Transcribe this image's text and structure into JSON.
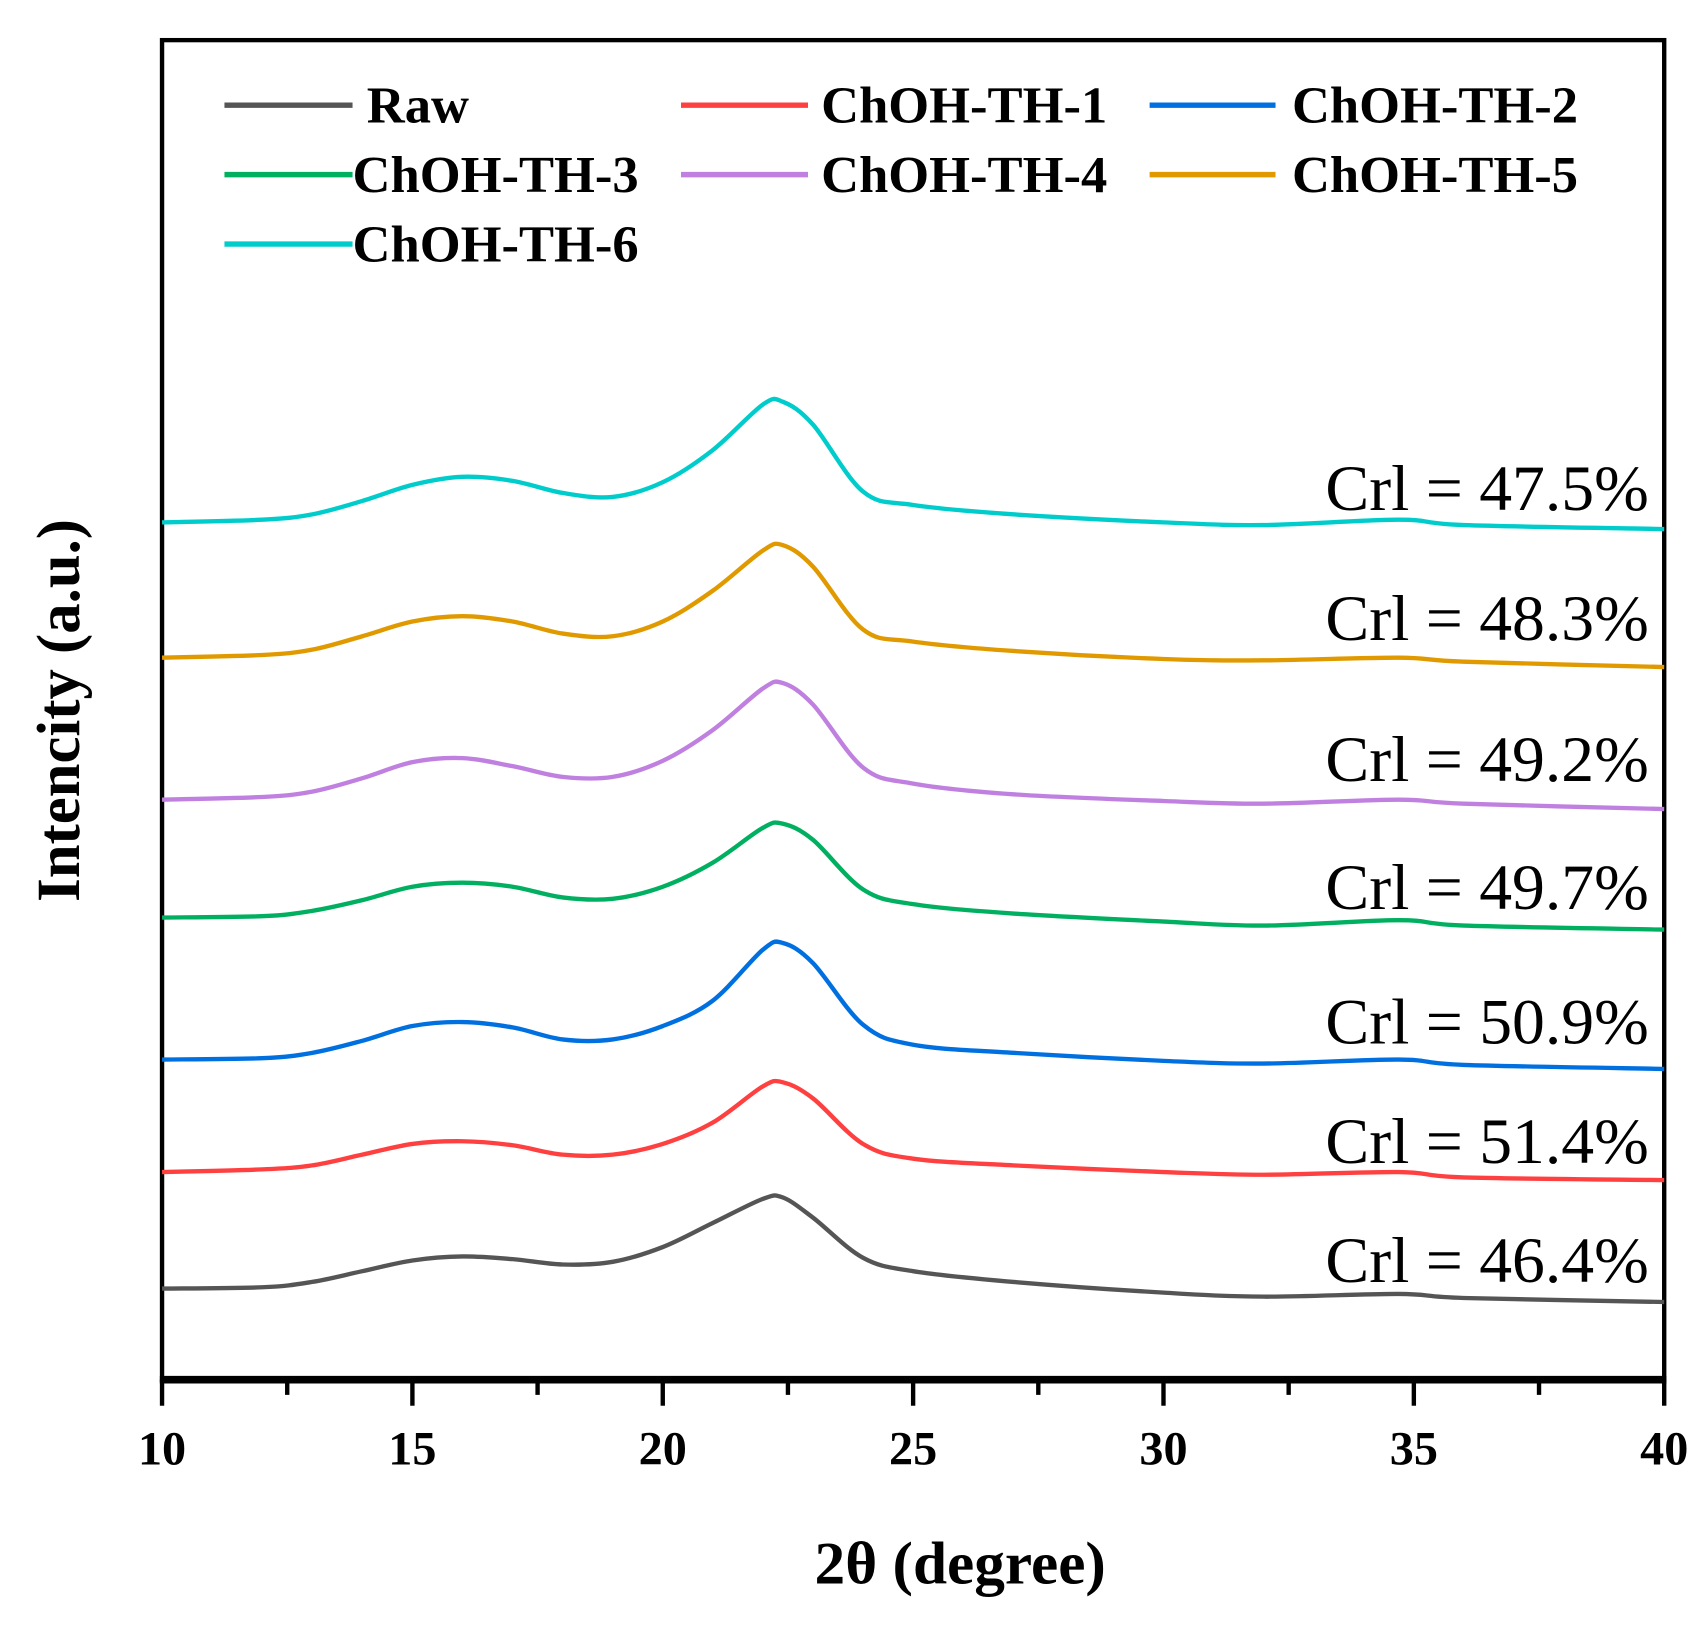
{
  "chart_data": {
    "type": "line",
    "title": "",
    "xlabel": "2θ (degree)",
    "ylabel": "Intencity (a.u.)",
    "xlim": [
      10,
      40
    ],
    "ylim": [
      0,
      1000
    ],
    "xticks": [
      10,
      15,
      20,
      25,
      30,
      35,
      40
    ],
    "xtick_labels": [
      "10",
      "15",
      "20",
      "25",
      "30",
      "35",
      "40"
    ],
    "grid": false,
    "legend_position": "top",
    "x": [
      10,
      12,
      13,
      14,
      15,
      16,
      17,
      18,
      19,
      20,
      21,
      22,
      22.4,
      23,
      24,
      25,
      27,
      30,
      32,
      34.7,
      36,
      40
    ],
    "series": [
      {
        "name": "Raw",
        "color": "#555555",
        "crl": "Crl = 46.4%",
        "values": [
          68,
          69,
          73,
          81,
          89,
          92,
          90,
          86,
          88,
          99,
          117,
          135,
          136,
          121,
          91,
          81,
          73,
          65,
          62,
          64,
          61,
          58
        ]
      },
      {
        "name": "ChOH-TH-1",
        "color": "#ff4040",
        "crl": "Crl = 51.4%",
        "values": [
          155,
          157,
          160,
          168,
          176,
          178,
          175,
          168,
          168,
          176,
          192,
          219,
          222,
          210,
          176,
          165,
          160,
          155,
          153,
          155,
          151,
          149
        ]
      },
      {
        "name": "ChOH-TH-2",
        "color": "#0070e0",
        "crl": "Crl = 50.9%",
        "values": [
          239,
          240,
          244,
          253,
          264,
          267,
          263,
          254,
          254,
          264,
          283,
          321,
          326,
          311,
          265,
          250,
          244,
          238,
          236,
          239,
          235,
          232
        ]
      },
      {
        "name": "ChOH-TH-3",
        "color": "#00b060",
        "crl": "Crl = 49.7%",
        "values": [
          345,
          346,
          350,
          358,
          368,
          371,
          368,
          360,
          359,
          368,
          386,
          412,
          415,
          403,
          366,
          355,
          348,
          342,
          339,
          343,
          339,
          336
        ]
      },
      {
        "name": "ChOH-TH-4",
        "color": "#c080e0",
        "crl": "Crl = 49.2%",
        "values": [
          433,
          435,
          439,
          449,
          461,
          464,
          458,
          450,
          450,
          462,
          485,
          516,
          520,
          504,
          457,
          445,
          437,
          432,
          430,
          433,
          430,
          426
        ]
      },
      {
        "name": "ChOH-TH-5",
        "color": "#e09a00",
        "crl": "Crl = 48.3%",
        "values": [
          539,
          541,
          545,
          555,
          566,
          570,
          566,
          557,
          555,
          566,
          589,
          619,
          623,
          607,
          560,
          551,
          544,
          538,
          537,
          539,
          536,
          532
        ]
      },
      {
        "name": "ChOH-TH-6",
        "color": "#00cccc",
        "crl": "Crl = 47.5%",
        "values": [
          640,
          642,
          646,
          656,
          668,
          674,
          671,
          662,
          659,
          670,
          694,
          728,
          730,
          713,
          663,
          653,
          646,
          640,
          638,
          642,
          638,
          635
        ]
      }
    ]
  }
}
